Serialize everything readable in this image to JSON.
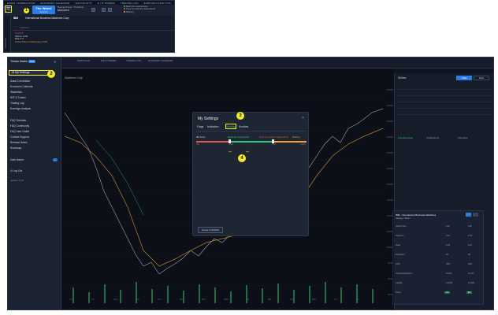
{
  "top": {
    "nav": [
      "ASSET CORRELATION",
      "ECONOMIC CALENDAR",
      "WATCHLISTS",
      "R / R TRADES",
      "TRADING LOG",
      "EARNINGS ANALYSIS"
    ],
    "brand": "The Wheel",
    "brand_sub": "Screener",
    "buying_label": "Buying Power / Positions",
    "buying_value": "$100,000   0",
    "legend": [
      "Meets the requirements",
      "Does not meet the requirements",
      "Warning"
    ],
    "ticker_symbol": "IBM",
    "ticker_name": "International Business Machines Corp",
    "search_placeholder": "Indicators",
    "stats": [
      "IV 28.4%",
      "Volume: 9.2M",
      "Beta 0.71",
      "Current Price vs Moving Avg 174.01"
    ],
    "badge": "1",
    "sidebar_tag": "POSITIONS"
  },
  "menu": {
    "user": "Tristan Martin",
    "user_pill": "PRO",
    "settings": "My Settings",
    "items": [
      "Asset Correlation",
      "Economic Calendar",
      "Watchlists",
      "R/R & Trades",
      "Trading Log",
      "Earnings Analysis",
      "",
      "FAQ Tutorials",
      "FAQ Community",
      "FAQ User Guide",
      "Contact Support",
      "Release Notes",
      "Roadmap"
    ],
    "dark_mode": "Dark theme",
    "logout": "Log Out",
    "version": "version 1.0.0",
    "badge": "2"
  },
  "chart": {
    "toolbar": [
      "PORTFOLIO",
      "R/R & TRADES",
      "TRADING LOG",
      "ECONOMIC CALENDAR"
    ],
    "title": "Machines Corp",
    "price_ticks": [
      "150.00",
      "145.00",
      "140.00",
      "135.00",
      "130.00",
      "125.00",
      "120.00",
      "115.00",
      "110.00",
      "105.00",
      "100.00",
      "95.00",
      "90.00",
      "85.00"
    ],
    "time_ticks": [
      "Jun",
      "Jul",
      "Aug",
      "Sep",
      "Oct",
      "Nov",
      "Dec",
      "2023",
      "Feb",
      "Mar",
      "Apr",
      "May",
      "Jun",
      "Jul"
    ]
  },
  "modal": {
    "title": "My Settings",
    "close": "×",
    "tabs": [
      "Flags",
      "Indication",
      "Scoring",
      "Rookies"
    ],
    "active_tab": "Scoring",
    "rating_label": "IBL Score",
    "legend": [
      "Meets the requirements",
      "Does not meet the requirements",
      "Warning"
    ],
    "ticks": [
      "0%",
      "30%",
      "70%",
      "100%"
    ],
    "reset": "Reset to Default",
    "badge3": "3",
    "badge4": "4"
  },
  "right_panel": {
    "title": "Strikes",
    "tabs": [
      "Calls",
      "Puts"
    ],
    "lower_tabs": [
      "Fundamentals",
      "Applications",
      "Favorites"
    ]
  },
  "order_panel": {
    "header": "IBM - International Business Machines",
    "sub": "Strategy: Wheel",
    "rows": [
      [
        "Strike Price",
        "130",
        "135"
      ],
      [
        "Premium",
        "2.10",
        "3.45"
      ],
      [
        "Delta",
        "0.22",
        "0.31"
      ],
      [
        "Expiration",
        "30",
        "30"
      ],
      [
        "POP",
        "78%",
        "69%"
      ],
      [
        "Annualized Return",
        "19.6%",
        "24.1%"
      ],
      [
        "Capital",
        "13,000",
        "13,500"
      ],
      [
        "Score",
        "72",
        "81"
      ]
    ]
  },
  "colors": {
    "accent": "#2a7de1",
    "highlight": "#f4ea2a",
    "red": "#e35a4f",
    "green": "#2ecc71",
    "orange": "#f3a03a"
  }
}
